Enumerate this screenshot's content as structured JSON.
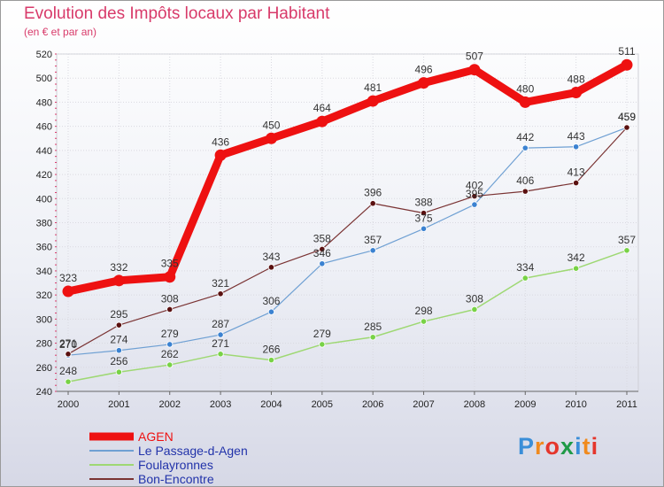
{
  "title": "Evolution des Impôts locaux par Habitant",
  "subtitle": "(en € et par an)",
  "chart_data": {
    "type": "line",
    "x": [
      2000,
      2001,
      2002,
      2003,
      2004,
      2005,
      2006,
      2007,
      2008,
      2009,
      2010,
      2011
    ],
    "ylim": [
      240,
      520
    ],
    "yticks": [
      240,
      260,
      280,
      300,
      320,
      340,
      360,
      380,
      400,
      420,
      440,
      460,
      480,
      500,
      520
    ],
    "grid": true,
    "legend_position": "bottom-left",
    "series": [
      {
        "name": "AGEN",
        "values": [
          323,
          332,
          335,
          436,
          450,
          464,
          481,
          496,
          507,
          480,
          488,
          511
        ],
        "color": "#ee1111"
      },
      {
        "name": "Le Passage-d-Agen",
        "values": [
          270,
          274,
          279,
          287,
          306,
          346,
          357,
          375,
          395,
          442,
          443,
          459
        ],
        "color": "#6fa0d3"
      },
      {
        "name": "Foulayronnes",
        "values": [
          248,
          256,
          262,
          271,
          266,
          279,
          285,
          298,
          308,
          334,
          342,
          357
        ],
        "color": "#9ed873"
      },
      {
        "name": "Bon-Encontre",
        "values": [
          271,
          295,
          308,
          321,
          343,
          358,
          396,
          388,
          402,
          406,
          413,
          459
        ],
        "color": "#7a3333"
      }
    ]
  },
  "logo": {
    "letters": [
      "P",
      "r",
      "o",
      "x",
      "i",
      "t",
      "i"
    ],
    "colors": [
      "#3a8ed8",
      "#f08a1e",
      "#e5362c",
      "#1f9a47",
      "#3a8ed8",
      "#f08a1e",
      "#e5362c"
    ]
  }
}
